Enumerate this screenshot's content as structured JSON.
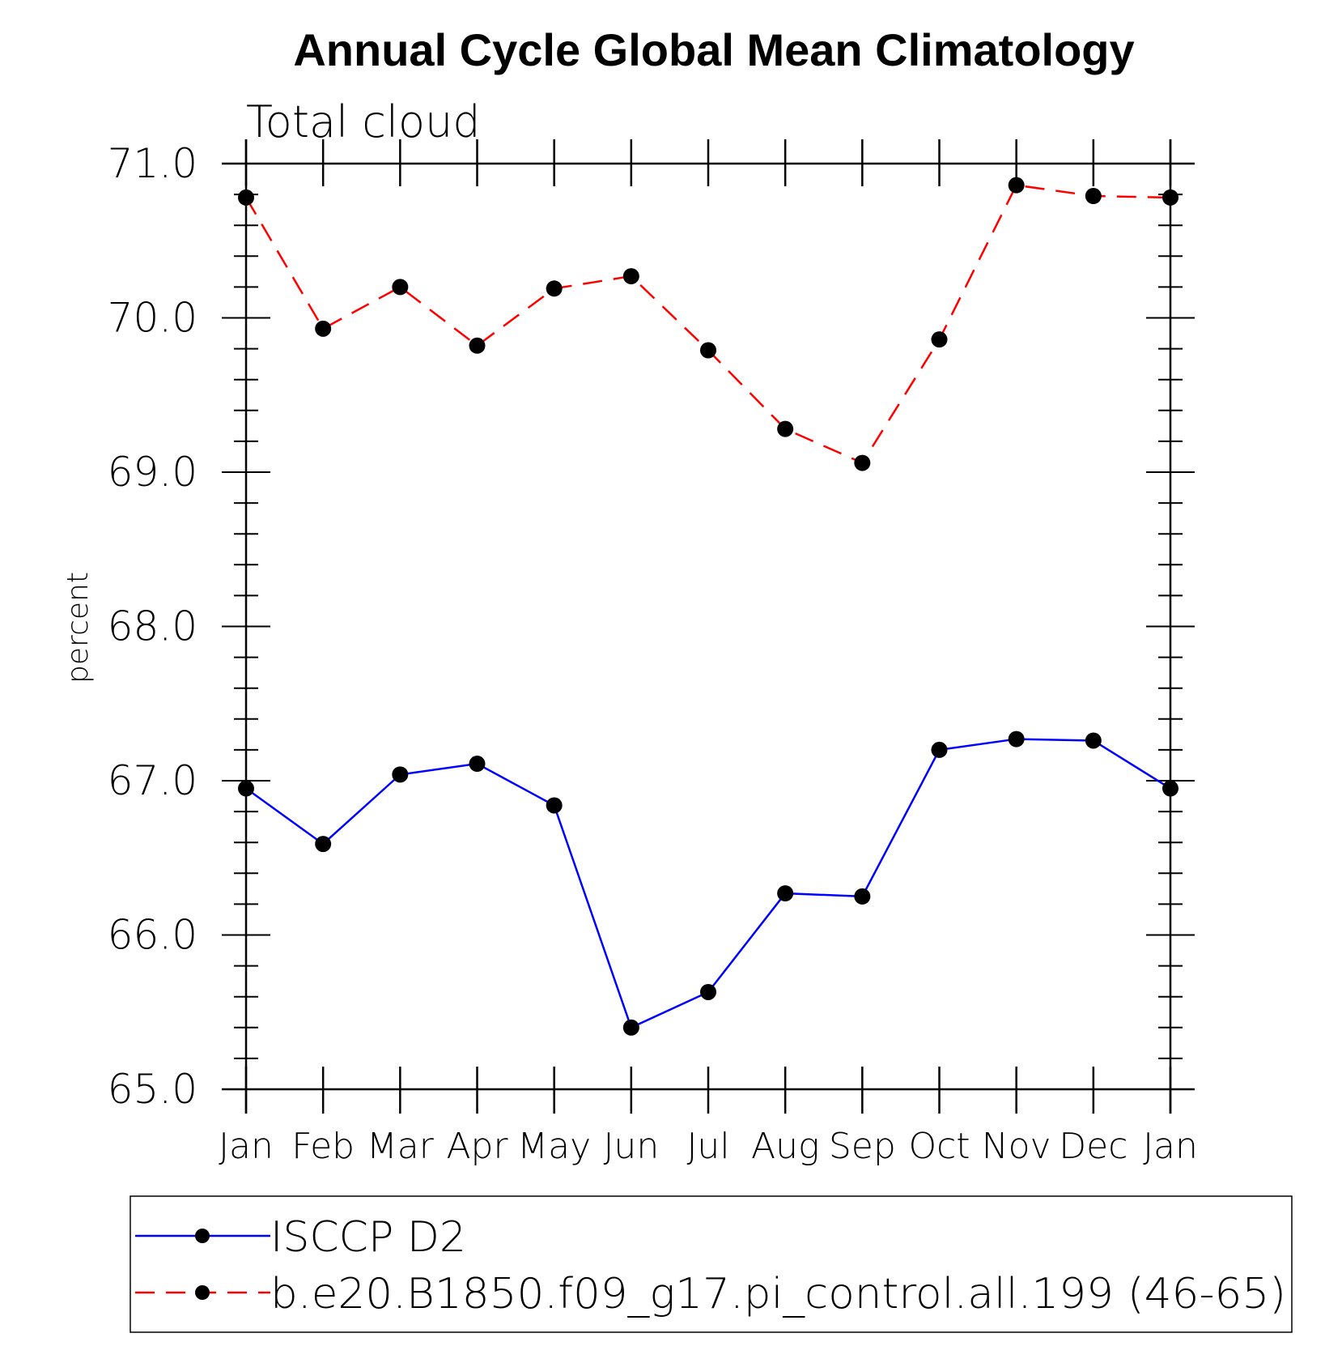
{
  "chart_data": {
    "type": "line",
    "title": "Annual Cycle Global Mean Climatology",
    "subtitle": "Total cloud",
    "xlabel": "",
    "ylabel": "percent",
    "categories": [
      "Jan",
      "Feb",
      "Mar",
      "Apr",
      "May",
      "Jun",
      "Jul",
      "Aug",
      "Sep",
      "Oct",
      "Nov",
      "Dec",
      "Jan"
    ],
    "ylim": [
      65.0,
      71.0
    ],
    "yticks": [
      "65.0",
      "66.0",
      "67.0",
      "68.0",
      "69.0",
      "70.0",
      "71.0"
    ],
    "ytick_values": [
      65.0,
      66.0,
      67.0,
      68.0,
      69.0,
      70.0,
      71.0
    ],
    "grid": false,
    "legend_position": "bottom",
    "series": [
      {
        "name": "ISCCP D2",
        "color": "#0000ff",
        "dash": "solid",
        "values": [
          66.95,
          66.59,
          67.04,
          67.11,
          66.84,
          65.4,
          65.63,
          66.27,
          66.25,
          67.2,
          67.27,
          67.26,
          66.95
        ]
      },
      {
        "name": "b.e20.B1850.f09_g17.pi_control.all.199 (46-65)",
        "color": "#ff0000",
        "dash": "dashed",
        "values": [
          70.78,
          69.93,
          70.2,
          69.82,
          70.19,
          70.27,
          69.79,
          69.28,
          69.06,
          69.86,
          70.86,
          70.79,
          70.78
        ]
      }
    ],
    "marker_color": "#000000"
  }
}
